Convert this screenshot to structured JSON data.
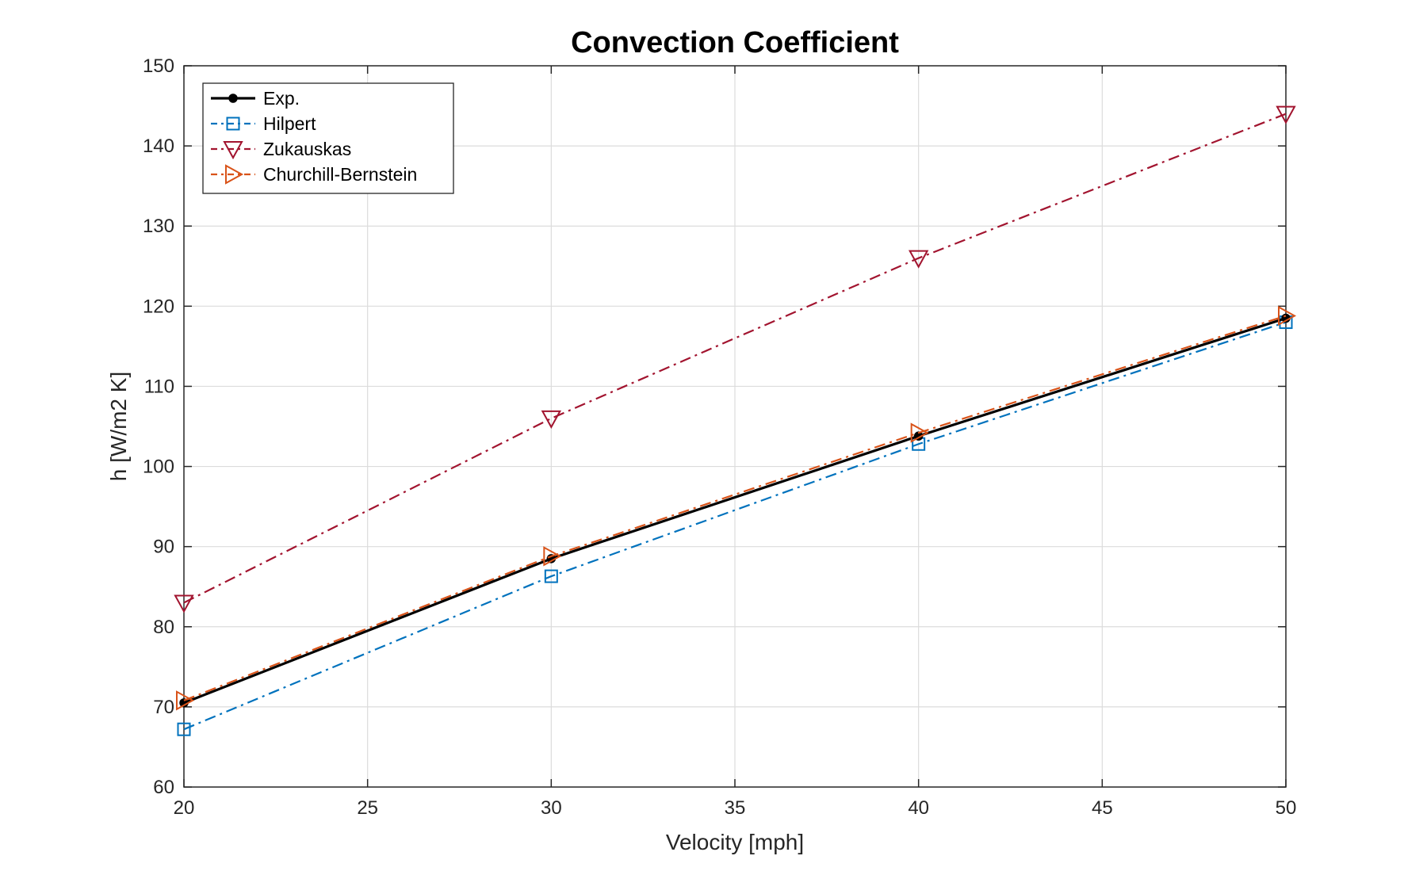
{
  "chart_data": {
    "type": "line",
    "title": "Convection Coefficient",
    "xlabel": "Velocity [mph]",
    "ylabel": "h [W/m2 K]",
    "xlim": [
      20,
      50
    ],
    "ylim": [
      60,
      150
    ],
    "xticks": [
      20,
      25,
      30,
      35,
      40,
      45,
      50
    ],
    "yticks": [
      60,
      70,
      80,
      90,
      100,
      110,
      120,
      130,
      140,
      150
    ],
    "grid": true,
    "legend_position": "top-left",
    "x": [
      20,
      30,
      40,
      50
    ],
    "series": [
      {
        "name": "Exp.",
        "values": [
          70.5,
          88.5,
          103.8,
          118.5
        ],
        "color": "#000000",
        "line_style": "solid",
        "marker": "dot"
      },
      {
        "name": "Hilpert",
        "values": [
          67.2,
          86.3,
          102.8,
          118.0
        ],
        "color": "#0072BD",
        "line_style": "dash-dot",
        "marker": "square"
      },
      {
        "name": "Zukauskas",
        "values": [
          83.0,
          106.0,
          126.0,
          144.0
        ],
        "color": "#A2142F",
        "line_style": "dash-dot",
        "marker": "triangle-down"
      },
      {
        "name": "Churchill-Bernstein",
        "values": [
          70.8,
          88.8,
          104.2,
          118.8
        ],
        "color": "#D95319",
        "line_style": "dash-dot",
        "marker": "triangle-right"
      }
    ]
  }
}
